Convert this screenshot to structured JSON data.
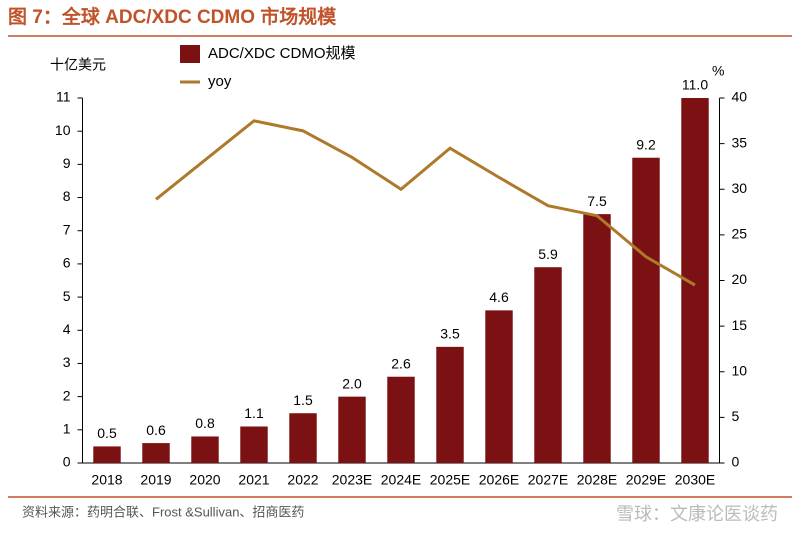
{
  "title": "图 7：全球 ADC/XDC CDMO 市场规模",
  "source": "资料来源：药明合联、Frost &Sullivan、招商医药",
  "watermark": "雪球：文康论医谈药",
  "chart_data": {
    "type": "bar-line",
    "y_unit": "十亿美元",
    "y2_unit": "%",
    "categories": [
      "2018",
      "2019",
      "2020",
      "2021",
      "2022",
      "2023E",
      "2024E",
      "2025E",
      "2026E",
      "2027E",
      "2028E",
      "2029E",
      "2030E"
    ],
    "series": [
      {
        "name": "ADC/XDC CDMO规模",
        "type": "bar",
        "color": "#7b1113",
        "values": [
          0.5,
          0.6,
          0.8,
          1.1,
          1.5,
          2.0,
          2.6,
          3.5,
          4.6,
          5.9,
          7.5,
          9.2,
          11.0
        ],
        "value_labels": [
          "0.5",
          "0.6",
          "0.8",
          "1.1",
          "1.5",
          "2.0",
          "2.6",
          "3.5",
          "4.6",
          "5.9",
          "7.5",
          "9.2",
          "11.0"
        ]
      },
      {
        "name": "yoy",
        "type": "line",
        "axis": "y2",
        "color": "#ad7a2c",
        "values": [
          null,
          28.9,
          33.2,
          37.5,
          36.4,
          33.5,
          30.0,
          34.5,
          31.3,
          28.2,
          27.1,
          22.6,
          19.5
        ]
      }
    ],
    "ylim": [
      0,
      11
    ],
    "yticks": [
      0,
      1,
      2,
      3,
      4,
      5,
      6,
      7,
      8,
      9,
      10,
      11
    ],
    "y2lim": [
      0,
      40
    ],
    "y2ticks": [
      0,
      5,
      10,
      15,
      20,
      25,
      30,
      35,
      40
    ]
  }
}
